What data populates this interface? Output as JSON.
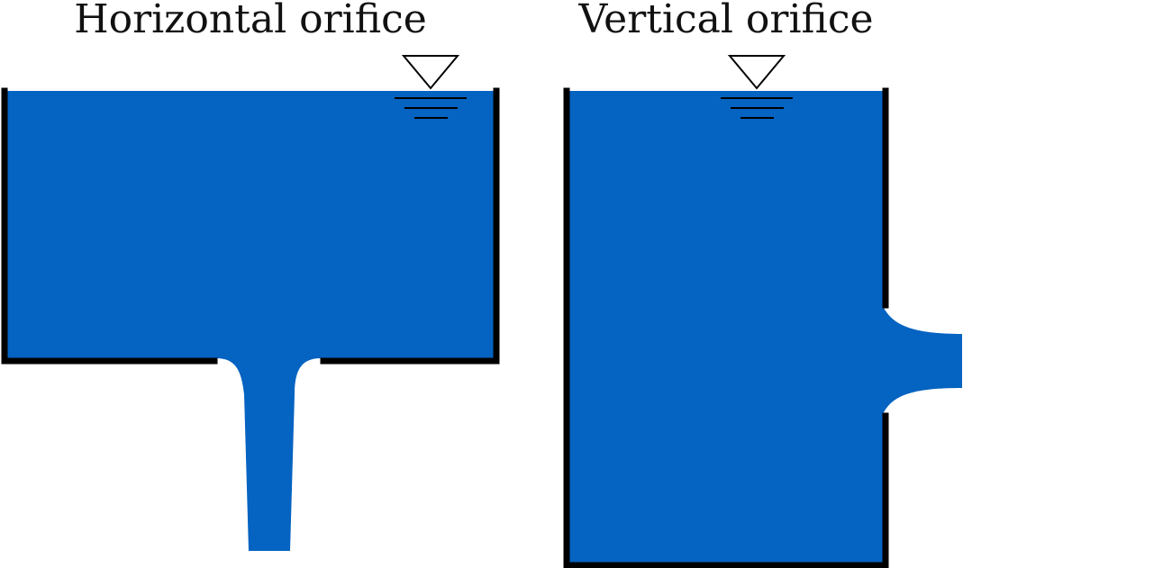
{
  "titles": {
    "left": "Horizontal orifice",
    "right": "Vertical orifice"
  },
  "colors": {
    "water": "#0563C1",
    "wall": "#000000",
    "background": "#FFFFFF",
    "symbol": "#000000"
  },
  "icons": {
    "free_surface_symbol": "water-level-triangle-icon"
  }
}
